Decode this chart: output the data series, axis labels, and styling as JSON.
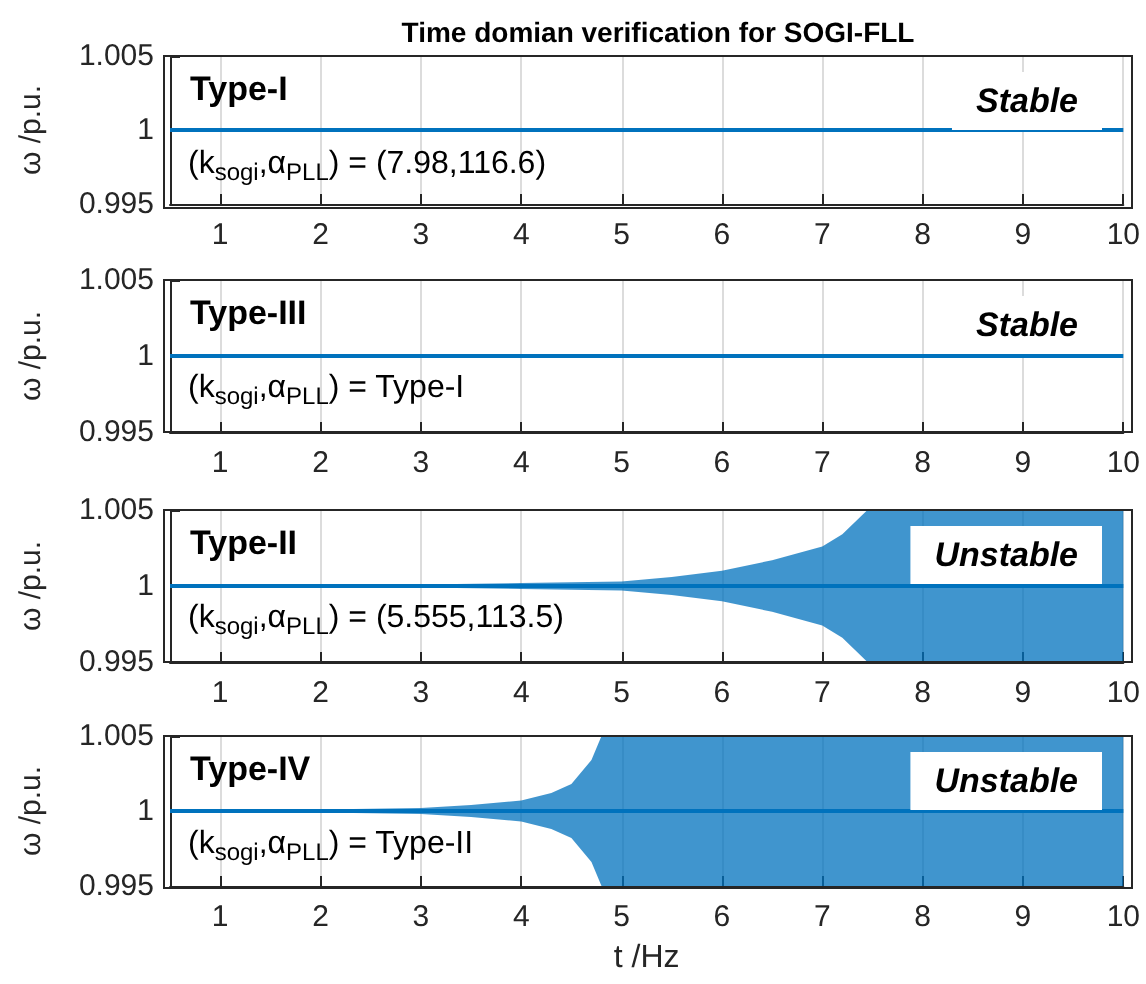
{
  "chart_data": [
    {
      "type": "line",
      "title": "Time domian verification for SOGI-FLL",
      "ylabel": "ω /p.u.",
      "annotations": [
        "Type-I",
        "Stable",
        "(k$_{sogi}$,α$_{PLL}$) = (7.98,116.6)"
      ],
      "x": [
        0.5,
        1,
        2,
        3,
        4,
        5,
        6,
        7,
        8,
        9,
        10
      ],
      "xlim": [
        0.5,
        10
      ],
      "xticks": [
        1,
        2,
        3,
        4,
        5,
        6,
        7,
        8,
        9,
        10
      ],
      "ylim": [
        0.995,
        1.005
      ],
      "yticks": [
        0.995,
        1,
        1.005
      ],
      "grid": "x",
      "series": [
        {
          "color": "#0072bd",
          "values": [
            1,
            1,
            1,
            1,
            1,
            1,
            1,
            1,
            1,
            1,
            1
          ]
        }
      ]
    },
    {
      "type": "line",
      "ylabel": "ω /p.u.",
      "annotations": [
        "Type-III",
        "Stable",
        "(k$_{sogi}$,α$_{PLL}$) = Type-I"
      ],
      "x": [
        0.5,
        1,
        2,
        3,
        4,
        5,
        6,
        7,
        8,
        9,
        10
      ],
      "xlim": [
        0.5,
        10
      ],
      "xticks": [
        1,
        2,
        3,
        4,
        5,
        6,
        7,
        8,
        9,
        10
      ],
      "ylim": [
        0.995,
        1.005
      ],
      "yticks": [
        0.995,
        1,
        1.005
      ],
      "grid": "x",
      "series": [
        {
          "color": "#0072bd",
          "values": [
            1,
            1,
            1,
            1,
            1,
            1,
            1,
            1,
            1,
            1,
            1
          ]
        }
      ]
    },
    {
      "type": "line",
      "ylabel": "ω /p.u.",
      "annotations": [
        "Type-II",
        "Unstable",
        "(k$_{sogi}$,α$_{PLL}$) = (5.555,113.5)"
      ],
      "x": [
        0.5,
        1,
        2,
        3,
        4,
        5,
        5.5,
        6,
        6.5,
        7,
        7.2,
        7.45,
        8,
        9,
        10
      ],
      "xlim": [
        0.5,
        10
      ],
      "xticks": [
        1,
        2,
        3,
        4,
        5,
        6,
        7,
        8,
        9,
        10
      ],
      "ylim": [
        0.995,
        1.005
      ],
      "yticks": [
        0.995,
        1,
        1.005
      ],
      "grid": "x",
      "series": [
        {
          "color": "#0072bd",
          "values": [
            1,
            1,
            1,
            1,
            1,
            1,
            1,
            1,
            1,
            1,
            1,
            1,
            1,
            1,
            1
          ],
          "upper": [
            1,
            1.0001,
            1.0001,
            1.0001,
            1.0002,
            1.0003,
            1.0006,
            1.001,
            1.0017,
            1.0026,
            1.0034,
            1.005,
            1.005,
            1.005,
            1.005
          ],
          "lower": [
            1,
            0.9999,
            0.9999,
            0.9999,
            0.9998,
            0.9997,
            0.9994,
            0.999,
            0.9983,
            0.9974,
            0.9966,
            0.995,
            0.995,
            0.995,
            0.995
          ]
        }
      ]
    },
    {
      "type": "line",
      "ylabel": "ω /p.u.",
      "xlabel": "t /Hz",
      "annotations": [
        "Type-IV",
        "Unstable",
        "(k$_{sogi}$,α$_{PLL}$) = Type-II"
      ],
      "x": [
        0.5,
        1,
        2,
        3,
        3.5,
        4,
        4.3,
        4.5,
        4.7,
        4.8,
        6,
        8,
        10
      ],
      "xlim": [
        0.5,
        10
      ],
      "xticks": [
        1,
        2,
        3,
        4,
        5,
        6,
        7,
        8,
        9,
        10
      ],
      "ylim": [
        0.995,
        1.005
      ],
      "yticks": [
        0.995,
        1,
        1.005
      ],
      "grid": "x",
      "series": [
        {
          "color": "#0072bd",
          "values": [
            1,
            1,
            1,
            1,
            1,
            1,
            1,
            1,
            1,
            1,
            1,
            1,
            1
          ],
          "upper": [
            1,
            1.0001,
            1.0001,
            1.0002,
            1.0004,
            1.0007,
            1.0012,
            1.0018,
            1.0034,
            1.005,
            1.005,
            1.005,
            1.005
          ],
          "lower": [
            1,
            0.9999,
            0.9999,
            0.9998,
            0.9996,
            0.9993,
            0.9988,
            0.9982,
            0.9966,
            0.995,
            0.995,
            0.995,
            0.995
          ]
        }
      ]
    }
  ]
}
